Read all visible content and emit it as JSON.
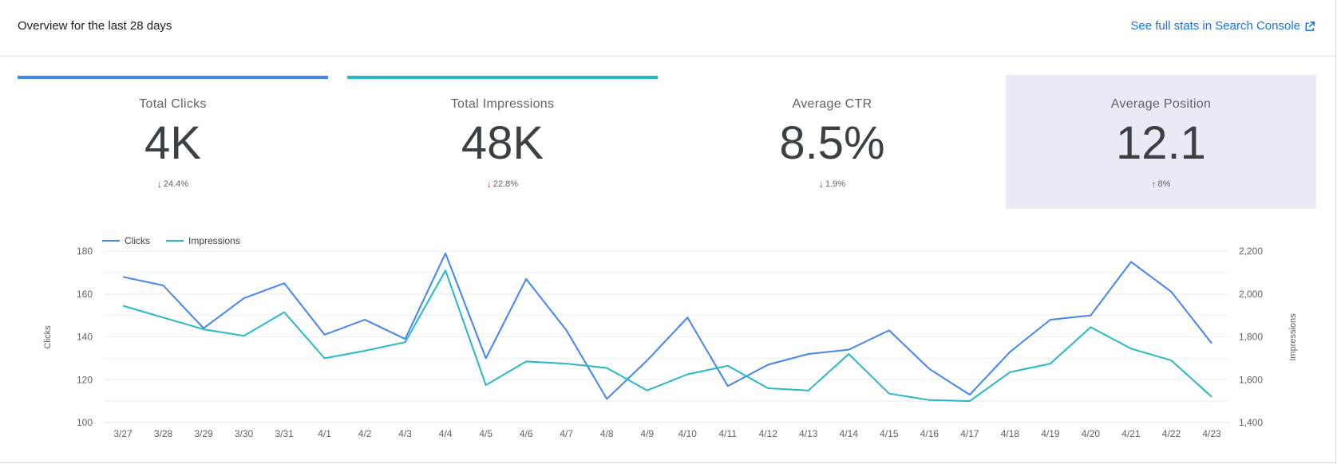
{
  "header": {
    "title": "Overview for the last 28 days",
    "link_label": "See full stats in Search Console",
    "link_icon": "external-link-icon"
  },
  "cards": [
    {
      "label": "Total Clicks",
      "value": "4K",
      "delta": "24.4%",
      "direction": "down",
      "bar_color": "#4285f4",
      "selected": true
    },
    {
      "label": "Total Impressions",
      "value": "48K",
      "delta": "22.8%",
      "direction": "down",
      "bar_color": "#26b8c8",
      "selected": true
    },
    {
      "label": "Average CTR",
      "value": "8.5%",
      "delta": "1.9%",
      "direction": "down",
      "bar_color": "",
      "selected": false
    },
    {
      "label": "Average Position",
      "value": "12.1",
      "delta": "8%",
      "direction": "up",
      "bar_color": "",
      "selected": false,
      "background": "#ece9f7"
    }
  ],
  "chart_data": {
    "type": "line",
    "x": [
      "3/27",
      "3/28",
      "3/29",
      "3/30",
      "3/31",
      "4/1",
      "4/2",
      "4/3",
      "4/4",
      "4/5",
      "4/6",
      "4/7",
      "4/8",
      "4/9",
      "4/10",
      "4/11",
      "4/12",
      "4/13",
      "4/14",
      "4/15",
      "4/16",
      "4/17",
      "4/18",
      "4/19",
      "4/20",
      "4/21",
      "4/22",
      "4/23"
    ],
    "series": [
      {
        "name": "Clicks",
        "axis": "left",
        "color": "#4285f4",
        "values": [
          168,
          164,
          144,
          158,
          165,
          141,
          148,
          139,
          179,
          130,
          167,
          143,
          111,
          129,
          149,
          117,
          127,
          132,
          134,
          143,
          125,
          113,
          133,
          148,
          150,
          175,
          161,
          137
        ]
      },
      {
        "name": "Impressions",
        "axis": "right",
        "color": "#26b8c8",
        "values": [
          1945,
          1890,
          1835,
          1805,
          1915,
          1700,
          1735,
          1775,
          2110,
          1575,
          1685,
          1675,
          1655,
          1550,
          1625,
          1665,
          1560,
          1550,
          1720,
          1535,
          1505,
          1500,
          1635,
          1675,
          1845,
          1745,
          1690,
          1520
        ]
      }
    ],
    "ylabel": "Clicks",
    "y2label": "Impressions",
    "ylim": [
      100,
      180
    ],
    "yticks": [
      "100",
      "120",
      "140",
      "160",
      "180"
    ],
    "y2lim": [
      1400,
      2200
    ],
    "y2ticks": [
      "1,400",
      "1,600",
      "1,800",
      "2,000",
      "2,200"
    ],
    "grid": true,
    "legend": "top-left"
  }
}
